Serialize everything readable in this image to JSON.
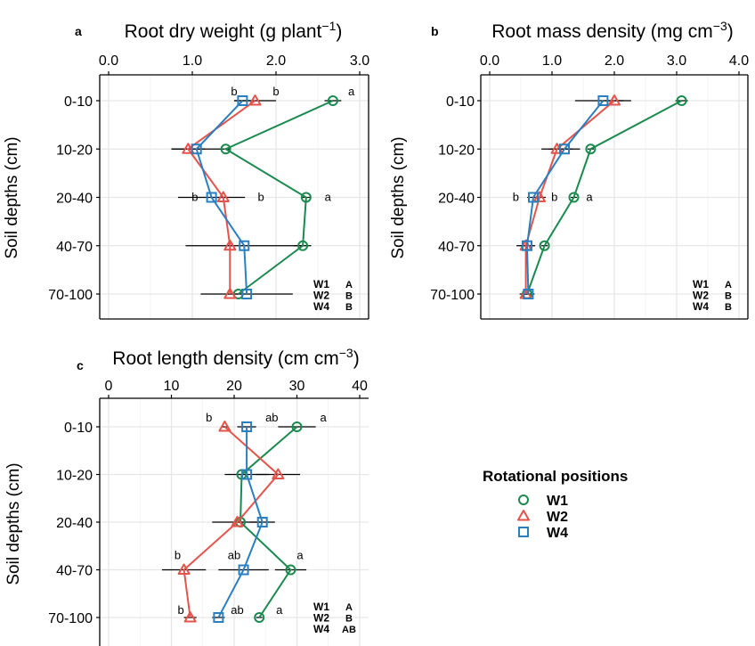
{
  "chart_data": [
    {
      "panel_label": "a",
      "type": "line",
      "title": "Root dry weight (g plant",
      "title_sup": "−1",
      "title_close": ")",
      "ylabel": "Soil depths (cm)",
      "xlim": [
        0,
        3
      ],
      "xticks": [
        "0.0",
        "1.0",
        "2.0",
        "3.0"
      ],
      "categories": [
        "0-10",
        "10-20",
        "20-40",
        "40-70",
        "70-100"
      ],
      "series": [
        {
          "name": "W1",
          "values": [
            2.68,
            1.4,
            2.36,
            2.32,
            1.55
          ],
          "err": [
            0.1,
            0.05,
            0.05,
            0.1,
            0.05
          ]
        },
        {
          "name": "W2",
          "values": [
            1.75,
            0.95,
            1.37,
            1.45,
            1.45
          ],
          "err": [
            0.25,
            0.2,
            0.05,
            0.05,
            0.05
          ]
        },
        {
          "name": "W4",
          "values": [
            1.6,
            1.05,
            1.23,
            1.62,
            1.65
          ],
          "err": [
            0.1,
            0.3,
            0.4,
            0.7,
            0.55
          ]
        }
      ],
      "annotations": [
        {
          "text": "b",
          "x": 1.5,
          "row": 0,
          "dy": -10
        },
        {
          "text": "b",
          "x": 2.0,
          "row": 0,
          "dy": -10
        },
        {
          "text": "a",
          "x": 2.9,
          "row": 0,
          "dy": -10
        },
        {
          "text": "b",
          "x": 1.03,
          "row": 2,
          "dy": 0
        },
        {
          "text": "b",
          "x": 1.82,
          "row": 2,
          "dy": 0
        },
        {
          "text": "a",
          "x": 2.62,
          "row": 2,
          "dy": 0
        }
      ],
      "group_letters": [
        {
          "name": "W1",
          "letter": "A"
        },
        {
          "name": "W2",
          "letter": "B"
        },
        {
          "name": "W4",
          "letter": "B"
        }
      ]
    },
    {
      "panel_label": "b",
      "type": "line",
      "title": "Root mass density (mg cm",
      "title_sup": "−3",
      "title_close": ")",
      "ylabel": "Soil depths (cm)",
      "xlim": [
        0,
        4
      ],
      "xticks": [
        "0.0",
        "1.0",
        "2.0",
        "3.0",
        "4.0"
      ],
      "categories": [
        "0-10",
        "10-20",
        "20-40",
        "40-70",
        "70-100"
      ],
      "series": [
        {
          "name": "W1",
          "values": [
            3.08,
            1.62,
            1.35,
            0.88,
            0.6
          ],
          "err": [
            0.1,
            0.05,
            0.05,
            0.05,
            0.05
          ]
        },
        {
          "name": "W2",
          "values": [
            2.0,
            1.08,
            0.8,
            0.58,
            0.58
          ],
          "err": [
            0.15,
            0.25,
            0.1,
            0.15,
            0.1
          ]
        },
        {
          "name": "W4",
          "values": [
            1.82,
            1.2,
            0.7,
            0.6,
            0.62
          ],
          "err": [
            0.45,
            0.25,
            0.1,
            0.1,
            0.1
          ]
        }
      ],
      "annotations": [
        {
          "text": "b",
          "x": 0.42,
          "row": 2,
          "dy": 0
        },
        {
          "text": "b",
          "x": 1.04,
          "row": 2,
          "dy": 0
        },
        {
          "text": "a",
          "x": 1.6,
          "row": 2,
          "dy": 0
        }
      ],
      "group_letters": [
        {
          "name": "W1",
          "letter": "A"
        },
        {
          "name": "W2",
          "letter": "B"
        },
        {
          "name": "W4",
          "letter": "B"
        }
      ]
    },
    {
      "panel_label": "c",
      "type": "line",
      "title": "Root length density (cm cm",
      "title_sup": "−3",
      "title_close": ")",
      "ylabel": "Soil depths (cm)",
      "xlim": [
        0,
        40
      ],
      "xticks": [
        "0",
        "10",
        "20",
        "30",
        "40"
      ],
      "categories": [
        "0-10",
        "10-20",
        "20-40",
        "40-70",
        "70-100"
      ],
      "series": [
        {
          "name": "W1",
          "values": [
            30.0,
            21.2,
            21.0,
            29.0,
            24.0
          ],
          "err": [
            3.0,
            0.5,
            0.5,
            2.5,
            0.5
          ]
        },
        {
          "name": "W2",
          "values": [
            18.5,
            27.0,
            20.5,
            12.0,
            13.0
          ],
          "err": [
            0.5,
            3.5,
            4.0,
            3.5,
            1.0
          ]
        },
        {
          "name": "W4",
          "values": [
            22.0,
            22.0,
            24.5,
            21.5,
            17.5
          ],
          "err": [
            1.5,
            3.5,
            2.0,
            4.0,
            1.0
          ]
        }
      ],
      "annotations": [
        {
          "text": "b",
          "x": 16.0,
          "row": 0,
          "dy": -10
        },
        {
          "text": "ab",
          "x": 26.0,
          "row": 0,
          "dy": -10
        },
        {
          "text": "a",
          "x": 34.2,
          "row": 0,
          "dy": -10
        },
        {
          "text": "b",
          "x": 11.0,
          "row": 3,
          "dy": -16
        },
        {
          "text": "ab",
          "x": 20.0,
          "row": 3,
          "dy": -16
        },
        {
          "text": "a",
          "x": 30.5,
          "row": 3,
          "dy": -16
        },
        {
          "text": "b",
          "x": 11.5,
          "row": 4,
          "dy": -8
        },
        {
          "text": "ab",
          "x": 20.5,
          "row": 4,
          "dy": -8
        },
        {
          "text": "a",
          "x": 27.2,
          "row": 4,
          "dy": -8
        }
      ],
      "group_letters": [
        {
          "name": "W1",
          "letter": "A"
        },
        {
          "name": "W2",
          "letter": "B"
        },
        {
          "name": "W4",
          "letter": "AB"
        }
      ]
    }
  ],
  "legend": {
    "title": "Rotational positions",
    "entries": [
      "W1",
      "W2",
      "W4"
    ]
  },
  "colors": {
    "W1": "#1a8a4e",
    "W2": "#e5534b",
    "W4": "#2a7fc1",
    "grid": "#e6e6e6",
    "errorbar": "#000000"
  },
  "markers": {
    "W1": "circle",
    "W2": "triangle",
    "W4": "square"
  }
}
